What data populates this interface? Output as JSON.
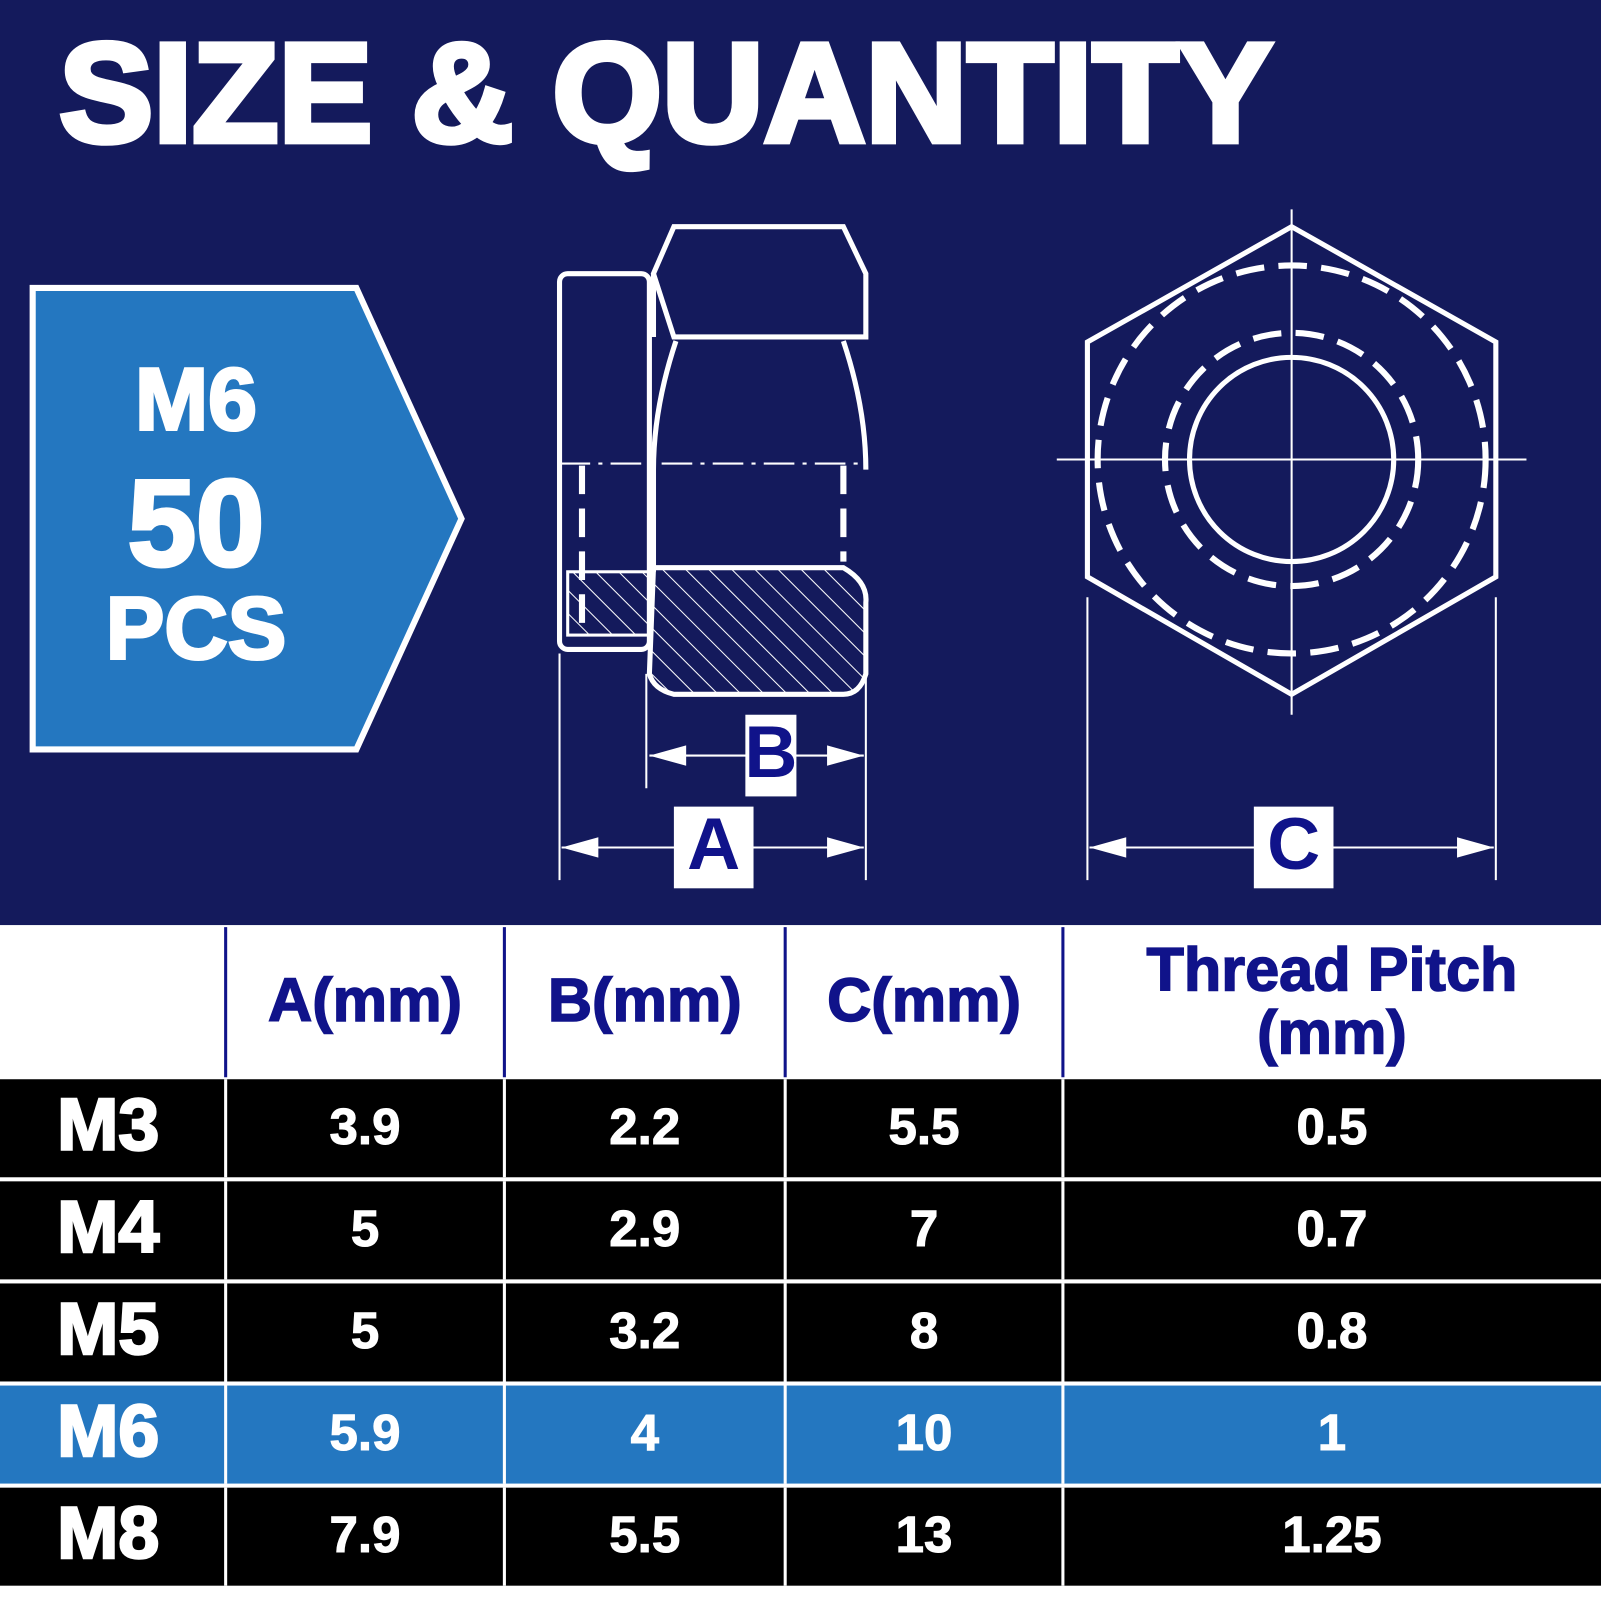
{
  "header": {
    "title": "SIZE & QUANTITY"
  },
  "badge": {
    "size": "M6",
    "quantity": "50",
    "unit": "PCS"
  },
  "diagram": {
    "labels": [
      "B",
      "A",
      "C"
    ]
  },
  "table": {
    "header": [
      "A(mm)",
      "B(mm)",
      "C(mm)",
      [
        "Thread Pitch",
        "(mm)"
      ]
    ],
    "rows": [
      [
        "M3",
        "3.9",
        "2.2",
        "5.5",
        "0.5"
      ],
      [
        "M4",
        "5",
        "2.9",
        "7",
        "0.7"
      ],
      [
        "M5",
        "5",
        "3.2",
        "8",
        "0.8"
      ],
      [
        "M6",
        "5.9",
        "4",
        "10",
        "1"
      ],
      [
        "M8",
        "7.9",
        "5.5",
        "13",
        "1.25"
      ]
    ]
  }
}
